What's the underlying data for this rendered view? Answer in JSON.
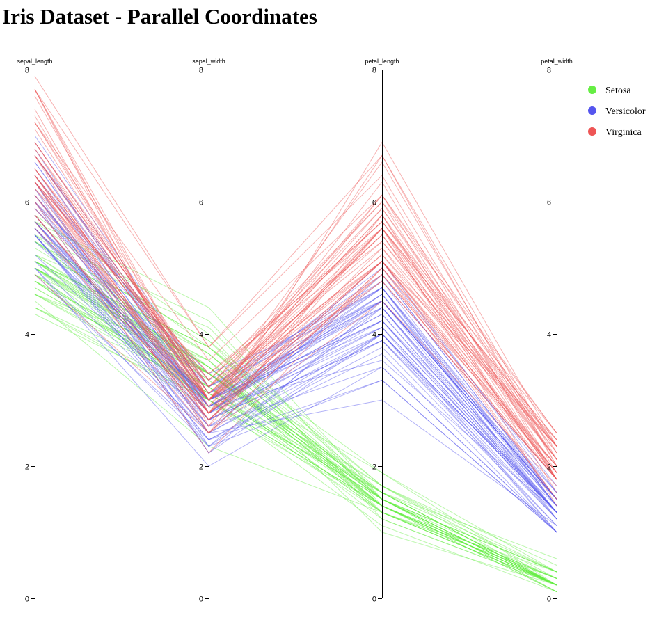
{
  "page": {
    "title": "Iris Dataset - Parallel Coordinates"
  },
  "chart_data": {
    "type": "parallel-coordinates",
    "title": "Iris Dataset - Parallel Coordinates",
    "axes": [
      "sepal_length",
      "sepal_width",
      "petal_length",
      "petal_width"
    ],
    "ylim": [
      0,
      8
    ],
    "ticks": [
      0,
      2,
      4,
      6,
      8
    ],
    "grid": false,
    "legend_position": "top-right",
    "line_opacity": 0.45,
    "series": [
      {
        "name": "Setosa",
        "color": "#66ee44",
        "rows": [
          [
            5.1,
            3.5,
            1.4,
            0.2
          ],
          [
            4.9,
            3.0,
            1.4,
            0.2
          ],
          [
            4.7,
            3.2,
            1.3,
            0.2
          ],
          [
            4.6,
            3.1,
            1.5,
            0.2
          ],
          [
            5.0,
            3.6,
            1.4,
            0.2
          ],
          [
            5.4,
            3.9,
            1.7,
            0.4
          ],
          [
            4.6,
            3.4,
            1.4,
            0.3
          ],
          [
            5.0,
            3.4,
            1.5,
            0.2
          ],
          [
            4.4,
            2.9,
            1.4,
            0.2
          ],
          [
            4.9,
            3.1,
            1.5,
            0.1
          ],
          [
            5.4,
            3.7,
            1.5,
            0.2
          ],
          [
            4.8,
            3.4,
            1.6,
            0.2
          ],
          [
            4.8,
            3.0,
            1.4,
            0.1
          ],
          [
            4.3,
            3.0,
            1.1,
            0.1
          ],
          [
            5.8,
            4.0,
            1.2,
            0.2
          ],
          [
            5.7,
            4.4,
            1.5,
            0.4
          ],
          [
            5.4,
            3.9,
            1.3,
            0.4
          ],
          [
            5.1,
            3.5,
            1.4,
            0.3
          ],
          [
            5.7,
            3.8,
            1.7,
            0.3
          ],
          [
            5.1,
            3.8,
            1.5,
            0.3
          ],
          [
            5.4,
            3.4,
            1.7,
            0.2
          ],
          [
            5.1,
            3.7,
            1.5,
            0.4
          ],
          [
            4.6,
            3.6,
            1.0,
            0.2
          ],
          [
            5.1,
            3.3,
            1.7,
            0.5
          ],
          [
            4.8,
            3.4,
            1.9,
            0.2
          ],
          [
            5.0,
            3.0,
            1.6,
            0.2
          ],
          [
            5.0,
            3.4,
            1.6,
            0.4
          ],
          [
            5.2,
            3.5,
            1.5,
            0.2
          ],
          [
            5.2,
            3.4,
            1.4,
            0.2
          ],
          [
            4.7,
            3.2,
            1.6,
            0.2
          ],
          [
            4.8,
            3.1,
            1.6,
            0.2
          ],
          [
            5.4,
            3.4,
            1.5,
            0.4
          ],
          [
            5.2,
            4.1,
            1.5,
            0.1
          ],
          [
            5.5,
            4.2,
            1.4,
            0.2
          ],
          [
            4.9,
            3.1,
            1.5,
            0.2
          ],
          [
            5.0,
            3.2,
            1.2,
            0.2
          ],
          [
            5.5,
            3.5,
            1.3,
            0.2
          ],
          [
            4.9,
            3.6,
            1.4,
            0.1
          ],
          [
            4.4,
            3.0,
            1.3,
            0.2
          ],
          [
            5.1,
            3.4,
            1.5,
            0.2
          ],
          [
            5.0,
            3.5,
            1.3,
            0.3
          ],
          [
            4.5,
            2.3,
            1.3,
            0.3
          ],
          [
            4.4,
            3.2,
            1.3,
            0.2
          ],
          [
            5.0,
            3.5,
            1.6,
            0.6
          ],
          [
            5.1,
            3.8,
            1.9,
            0.4
          ],
          [
            4.8,
            3.0,
            1.4,
            0.3
          ],
          [
            5.1,
            3.8,
            1.6,
            0.2
          ],
          [
            4.6,
            3.2,
            1.4,
            0.2
          ],
          [
            5.3,
            3.7,
            1.5,
            0.2
          ],
          [
            5.0,
            3.3,
            1.4,
            0.2
          ]
        ]
      },
      {
        "name": "Versicolor",
        "color": "#5555ee",
        "rows": [
          [
            7.0,
            3.2,
            4.7,
            1.4
          ],
          [
            6.4,
            3.2,
            4.5,
            1.5
          ],
          [
            6.9,
            3.1,
            4.9,
            1.5
          ],
          [
            5.5,
            2.3,
            4.0,
            1.3
          ],
          [
            6.5,
            2.8,
            4.6,
            1.5
          ],
          [
            5.7,
            2.8,
            4.5,
            1.3
          ],
          [
            6.3,
            3.3,
            4.7,
            1.6
          ],
          [
            4.9,
            2.4,
            3.3,
            1.0
          ],
          [
            6.6,
            2.9,
            4.6,
            1.3
          ],
          [
            5.2,
            2.7,
            3.9,
            1.4
          ],
          [
            5.0,
            2.0,
            3.5,
            1.0
          ],
          [
            5.9,
            3.0,
            4.2,
            1.5
          ],
          [
            6.0,
            2.2,
            4.0,
            1.0
          ],
          [
            6.1,
            2.9,
            4.7,
            1.4
          ],
          [
            5.6,
            2.9,
            3.6,
            1.3
          ],
          [
            6.7,
            3.1,
            4.4,
            1.4
          ],
          [
            5.6,
            3.0,
            4.5,
            1.5
          ],
          [
            5.8,
            2.7,
            4.1,
            1.0
          ],
          [
            6.2,
            2.2,
            4.5,
            1.5
          ],
          [
            5.6,
            2.5,
            3.9,
            1.1
          ],
          [
            5.9,
            3.2,
            4.8,
            1.8
          ],
          [
            6.1,
            2.8,
            4.0,
            1.3
          ],
          [
            6.3,
            2.5,
            4.9,
            1.5
          ],
          [
            6.1,
            2.8,
            4.7,
            1.2
          ],
          [
            6.4,
            2.9,
            4.3,
            1.3
          ],
          [
            6.6,
            3.0,
            4.4,
            1.4
          ],
          [
            6.8,
            2.8,
            4.8,
            1.4
          ],
          [
            6.7,
            3.0,
            5.0,
            1.7
          ],
          [
            6.0,
            2.9,
            4.5,
            1.5
          ],
          [
            5.7,
            2.6,
            3.5,
            1.0
          ],
          [
            5.5,
            2.4,
            3.8,
            1.1
          ],
          [
            5.5,
            2.4,
            3.7,
            1.0
          ],
          [
            5.8,
            2.7,
            3.9,
            1.2
          ],
          [
            6.0,
            2.7,
            5.1,
            1.6
          ],
          [
            5.4,
            3.0,
            4.5,
            1.5
          ],
          [
            6.0,
            3.4,
            4.5,
            1.6
          ],
          [
            6.7,
            3.1,
            4.7,
            1.5
          ],
          [
            6.3,
            2.3,
            4.4,
            1.3
          ],
          [
            5.6,
            3.0,
            4.1,
            1.3
          ],
          [
            5.5,
            2.5,
            4.0,
            1.3
          ],
          [
            5.5,
            2.6,
            4.4,
            1.2
          ],
          [
            6.1,
            3.0,
            4.6,
            1.4
          ],
          [
            5.8,
            2.6,
            4.0,
            1.2
          ],
          [
            5.0,
            2.3,
            3.3,
            1.0
          ],
          [
            5.6,
            2.7,
            4.2,
            1.3
          ],
          [
            5.7,
            3.0,
            4.2,
            1.2
          ],
          [
            5.7,
            2.9,
            4.2,
            1.3
          ],
          [
            6.2,
            2.9,
            4.3,
            1.3
          ],
          [
            5.1,
            2.5,
            3.0,
            1.1
          ],
          [
            5.7,
            2.8,
            4.1,
            1.3
          ]
        ]
      },
      {
        "name": "Virginica",
        "color": "#ee5555",
        "rows": [
          [
            6.3,
            3.3,
            6.0,
            2.5
          ],
          [
            5.8,
            2.7,
            5.1,
            1.9
          ],
          [
            7.1,
            3.0,
            5.9,
            2.1
          ],
          [
            6.3,
            2.9,
            5.6,
            1.8
          ],
          [
            6.5,
            3.0,
            5.8,
            2.2
          ],
          [
            7.6,
            3.0,
            6.6,
            2.1
          ],
          [
            4.9,
            2.5,
            4.5,
            1.7
          ],
          [
            7.3,
            2.9,
            6.3,
            1.8
          ],
          [
            6.7,
            2.5,
            5.8,
            1.8
          ],
          [
            7.2,
            3.6,
            6.1,
            2.5
          ],
          [
            6.5,
            3.2,
            5.1,
            2.0
          ],
          [
            6.4,
            2.7,
            5.3,
            1.9
          ],
          [
            6.8,
            3.0,
            5.5,
            2.1
          ],
          [
            5.7,
            2.5,
            5.0,
            2.0
          ],
          [
            5.8,
            2.8,
            5.1,
            2.4
          ],
          [
            6.4,
            3.2,
            5.3,
            2.3
          ],
          [
            6.5,
            3.0,
            5.5,
            1.8
          ],
          [
            7.7,
            3.8,
            6.7,
            2.2
          ],
          [
            7.7,
            2.6,
            6.9,
            2.3
          ],
          [
            6.0,
            2.2,
            5.0,
            1.5
          ],
          [
            6.9,
            3.2,
            5.7,
            2.3
          ],
          [
            5.6,
            2.8,
            4.9,
            2.0
          ],
          [
            7.7,
            2.8,
            6.7,
            2.0
          ],
          [
            6.3,
            2.7,
            4.9,
            1.8
          ],
          [
            6.7,
            3.3,
            5.7,
            2.1
          ],
          [
            7.2,
            3.2,
            6.0,
            1.8
          ],
          [
            6.2,
            2.8,
            4.8,
            1.8
          ],
          [
            6.1,
            3.0,
            4.9,
            1.8
          ],
          [
            6.4,
            2.8,
            5.6,
            2.1
          ],
          [
            7.2,
            3.0,
            5.8,
            1.6
          ],
          [
            7.4,
            2.8,
            6.1,
            1.9
          ],
          [
            7.9,
            3.8,
            6.4,
            2.0
          ],
          [
            6.4,
            2.8,
            5.6,
            2.2
          ],
          [
            6.3,
            2.8,
            5.1,
            1.5
          ],
          [
            6.1,
            2.6,
            5.6,
            1.4
          ],
          [
            7.7,
            3.0,
            6.1,
            2.3
          ],
          [
            6.3,
            3.4,
            5.6,
            2.4
          ],
          [
            6.4,
            3.1,
            5.5,
            1.8
          ],
          [
            6.0,
            3.0,
            4.8,
            1.8
          ],
          [
            6.9,
            3.1,
            5.4,
            2.1
          ],
          [
            6.7,
            3.1,
            5.6,
            2.4
          ],
          [
            6.9,
            3.1,
            5.1,
            2.3
          ],
          [
            5.8,
            2.7,
            5.1,
            1.9
          ],
          [
            6.8,
            3.2,
            5.9,
            2.3
          ],
          [
            6.7,
            3.3,
            5.7,
            2.5
          ],
          [
            6.7,
            3.0,
            5.2,
            2.3
          ],
          [
            6.3,
            2.5,
            5.0,
            1.9
          ],
          [
            6.5,
            3.0,
            5.2,
            2.0
          ],
          [
            6.2,
            3.4,
            5.4,
            2.3
          ],
          [
            5.9,
            3.0,
            5.1,
            1.8
          ]
        ]
      }
    ]
  }
}
